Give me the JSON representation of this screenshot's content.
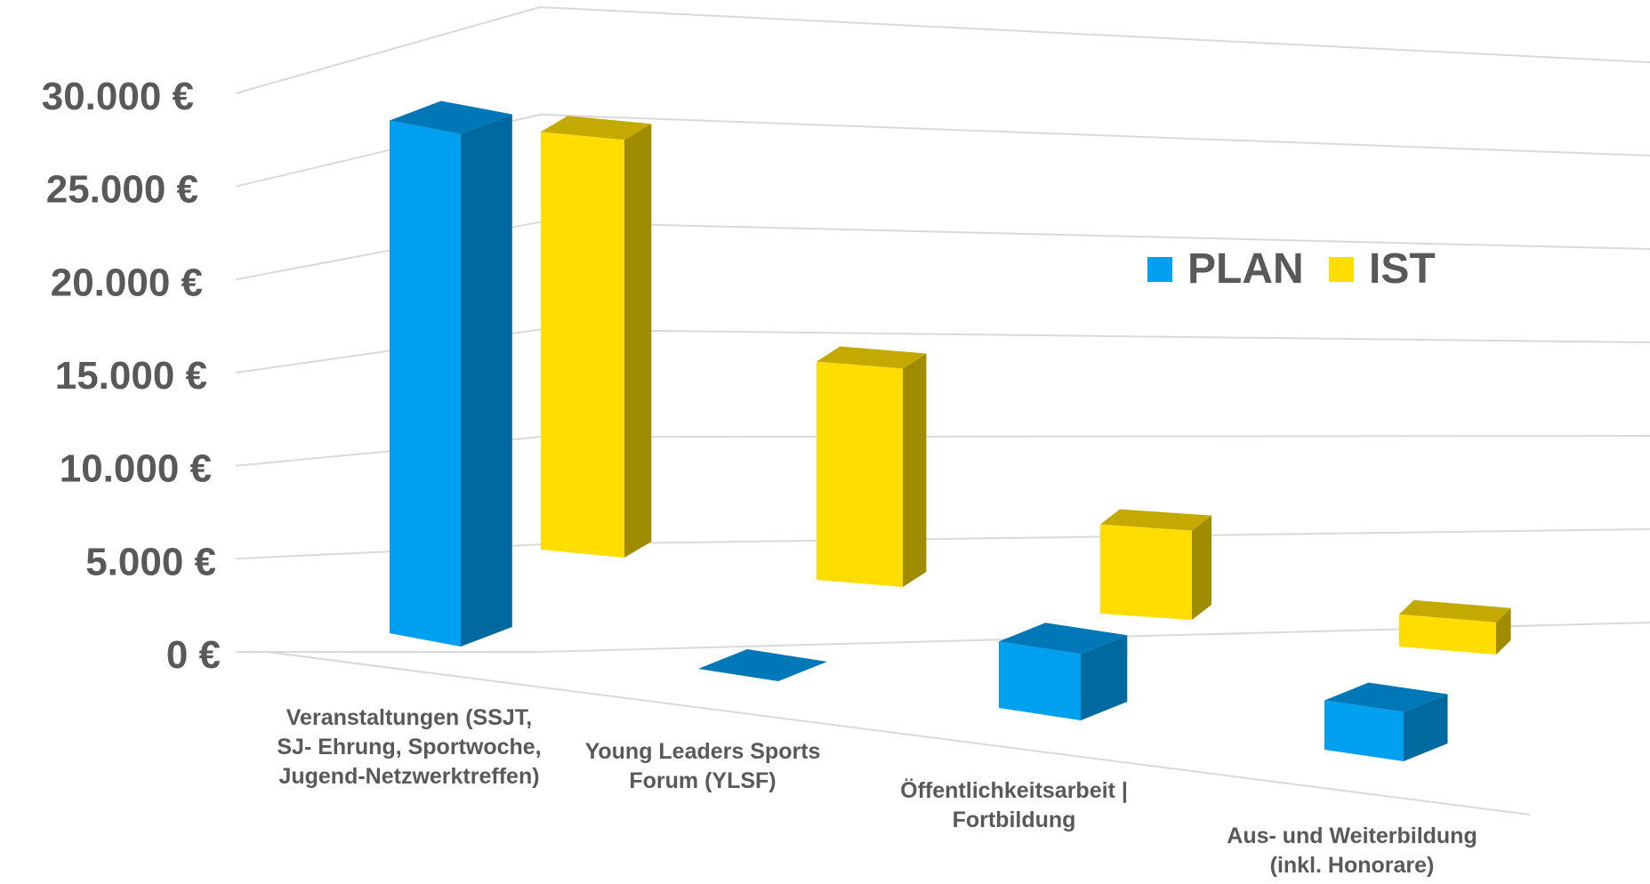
{
  "chart_data": {
    "type": "bar",
    "style": "3d-perspective-column",
    "categories": [
      [
        "Veranstaltungen (SSJT,",
        "SJ- Ehrung, Sportwoche,",
        "Jugend-Netzwerktreffen)"
      ],
      [
        "Young Leaders Sports",
        "Forum (YLSF)"
      ],
      [
        "Öffentlichkeitsarbeit |",
        "Fortbildung"
      ],
      [
        "Aus- und Weiterbildung",
        "(inkl. Honorare)"
      ]
    ],
    "series": [
      {
        "name": "PLAN",
        "values": [
          27000,
          0,
          3500,
          2600
        ],
        "color": "#00a0f0",
        "side_color": "#0069a0",
        "top_color": "#0078b8"
      },
      {
        "name": "IST",
        "values": [
          22000,
          11500,
          4700,
          1700
        ],
        "color": "#ffdd00",
        "side_color": "#a08c00",
        "top_color": "#c4a900"
      }
    ],
    "y_ticks": [
      "0 €",
      "5.000 €",
      "10.000 €",
      "15.000 €",
      "20.000 €",
      "25.000 €",
      "30.000 €"
    ],
    "ylim": [
      0,
      30000
    ],
    "grid": true,
    "legend": "top-right"
  }
}
